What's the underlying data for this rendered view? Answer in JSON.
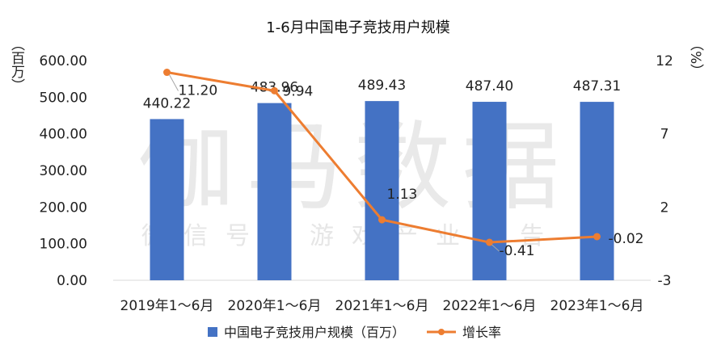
{
  "watermark": {
    "main": "伽马数据",
    "sub": "微信号：游戏产业报告"
  },
  "chart_data": {
    "type": "bar",
    "title": "1-6月中国电子竞技用户规模",
    "categories": [
      "2019年1～6月",
      "2020年1～6月",
      "2021年1～6月",
      "2022年1～6月",
      "2023年1～6月"
    ],
    "left_axis": {
      "unit_label": "（百万）",
      "ylim": [
        0,
        600
      ],
      "ticks": [
        "0.00",
        "100.00",
        "200.00",
        "300.00",
        "400.00",
        "500.00",
        "600.00"
      ]
    },
    "right_axis": {
      "unit_label": "（%）",
      "ylim": [
        -3,
        12
      ],
      "ticks": [
        "-3",
        "2",
        "7",
        "12"
      ]
    },
    "series": [
      {
        "name": "中国电子竞技用户规模（百万）",
        "type": "bar",
        "axis": "left",
        "color": "#4472C4",
        "values": [
          440.22,
          483.96,
          489.43,
          487.4,
          487.31
        ],
        "labels": [
          "440.22",
          "483.96",
          "489.43",
          "487.40",
          "487.31"
        ]
      },
      {
        "name": "增长率",
        "type": "line",
        "axis": "right",
        "color": "#ED7D31",
        "values": [
          11.2,
          9.94,
          1.13,
          -0.41,
          -0.02
        ],
        "labels": [
          "11.20",
          "9.94",
          "1.13",
          "-0.41",
          "-0.02"
        ]
      }
    ],
    "grid": false,
    "legend": "bottom"
  }
}
